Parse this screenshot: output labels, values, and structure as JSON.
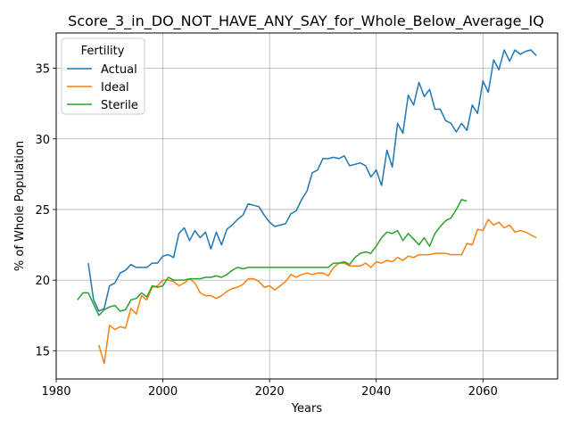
{
  "chart_data": {
    "type": "line",
    "title": "Score_3_in_DO_NOT_HAVE_ANY_SAY_for_Whole_Below_Average_IQ",
    "xlabel": "Years",
    "ylabel": "% of Whole Population",
    "xlim": [
      1980,
      2074
    ],
    "ylim": [
      13,
      37.5
    ],
    "xticks": [
      1980,
      2000,
      2020,
      2040,
      2060
    ],
    "yticks": [
      15,
      20,
      25,
      30,
      35
    ],
    "xtick_labels": [
      "1980",
      "2000",
      "2020",
      "2040",
      "2060"
    ],
    "ytick_labels": [
      "15",
      "20",
      "25",
      "30",
      "35"
    ],
    "grid": true,
    "legend": {
      "title": "Fertility",
      "position": "top-left"
    },
    "series": [
      {
        "name": "Actual",
        "color": "#1f77b4",
        "x": [
          1986,
          1987,
          1988,
          1989,
          1990,
          1991,
          1992,
          1993,
          1994,
          1995,
          1996,
          1997,
          1998,
          1999,
          2000,
          2001,
          2002,
          2003,
          2004,
          2005,
          2006,
          2007,
          2008,
          2009,
          2010,
          2011,
          2012,
          2013,
          2014,
          2015,
          2016,
          2017,
          2018,
          2019,
          2020,
          2021,
          2022,
          2023,
          2024,
          2025,
          2026,
          2027,
          2028,
          2029,
          2030,
          2031,
          2032,
          2033,
          2034,
          2035,
          2036,
          2037,
          2038,
          2039,
          2040,
          2041,
          2042,
          2043,
          2044,
          2045,
          2046,
          2047,
          2048,
          2049,
          2050,
          2051,
          2052,
          2053,
          2054,
          2055,
          2056,
          2057,
          2058,
          2059,
          2060,
          2061,
          2062,
          2063,
          2064,
          2065,
          2066,
          2067,
          2068,
          2069,
          2070
        ],
        "values": [
          21.2,
          18.6,
          17.8,
          18.0,
          19.6,
          19.8,
          20.5,
          20.7,
          21.1,
          20.9,
          20.9,
          20.9,
          21.2,
          21.2,
          21.7,
          21.8,
          21.6,
          23.3,
          23.7,
          22.8,
          23.5,
          23.0,
          23.4,
          22.2,
          23.4,
          22.5,
          23.6,
          23.9,
          24.3,
          24.6,
          25.4,
          25.3,
          25.2,
          24.6,
          24.1,
          23.8,
          23.9,
          24.0,
          24.7,
          24.9,
          25.7,
          26.3,
          27.6,
          27.8,
          28.6,
          28.6,
          28.7,
          28.6,
          28.8,
          28.1,
          28.2,
          28.3,
          28.1,
          27.3,
          27.8,
          26.7,
          29.2,
          28.0,
          31.1,
          30.4,
          33.1,
          32.4,
          34.0,
          33.0,
          33.5,
          32.1,
          32.1,
          31.3,
          31.1,
          30.5,
          31.1,
          30.6,
          32.4,
          31.8,
          34.1,
          33.3,
          35.6,
          34.9,
          36.3,
          35.5,
          36.3,
          36.0,
          36.2,
          36.3,
          35.9
        ]
      },
      {
        "name": "Ideal",
        "color": "#ff7f0e",
        "x": [
          1988,
          1989,
          1990,
          1991,
          1992,
          1993,
          1994,
          1995,
          1996,
          1997,
          1998,
          1999,
          2000,
          2001,
          2002,
          2003,
          2004,
          2005,
          2006,
          2007,
          2008,
          2009,
          2010,
          2011,
          2012,
          2013,
          2014,
          2015,
          2016,
          2017,
          2018,
          2019,
          2020,
          2021,
          2022,
          2023,
          2024,
          2025,
          2026,
          2027,
          2028,
          2029,
          2030,
          2031,
          2032,
          2033,
          2034,
          2035,
          2036,
          2037,
          2038,
          2039,
          2040,
          2041,
          2042,
          2043,
          2044,
          2045,
          2046,
          2047,
          2048,
          2049,
          2050,
          2051,
          2052,
          2053,
          2054,
          2055,
          2056,
          2057,
          2058,
          2059,
          2060,
          2061,
          2062,
          2063,
          2064,
          2065,
          2066,
          2067,
          2068,
          2069,
          2070
        ],
        "values": [
          15.4,
          14.1,
          16.8,
          16.5,
          16.7,
          16.6,
          18.0,
          17.6,
          18.9,
          18.6,
          19.5,
          19.6,
          20.0,
          20.0,
          19.9,
          19.6,
          19.8,
          20.1,
          19.8,
          19.1,
          18.9,
          18.9,
          18.7,
          18.9,
          19.2,
          19.4,
          19.5,
          19.7,
          20.1,
          20.1,
          19.9,
          19.5,
          19.6,
          19.3,
          19.6,
          19.9,
          20.4,
          20.2,
          20.4,
          20.5,
          20.4,
          20.5,
          20.5,
          20.3,
          20.9,
          21.2,
          21.2,
          21.0,
          21.0,
          21.0,
          21.2,
          20.9,
          21.3,
          21.2,
          21.4,
          21.3,
          21.6,
          21.4,
          21.7,
          21.6,
          21.8,
          21.8,
          21.8,
          21.9,
          21.9,
          21.9,
          21.8,
          21.8,
          21.8,
          22.6,
          22.5,
          23.6,
          23.5,
          24.3,
          23.9,
          24.1,
          23.7,
          23.9,
          23.4,
          23.5,
          23.4,
          23.2,
          23.0
        ]
      },
      {
        "name": "Sterile",
        "color": "#2ca02c",
        "x": [
          1984,
          1985,
          1986,
          1987,
          1988,
          1989,
          1990,
          1991,
          1992,
          1993,
          1994,
          1995,
          1996,
          1997,
          1998,
          1999,
          2000,
          2001,
          2002,
          2003,
          2004,
          2005,
          2006,
          2007,
          2008,
          2009,
          2010,
          2011,
          2012,
          2013,
          2014,
          2015,
          2016,
          2017,
          2018,
          2019,
          2020,
          2021,
          2022,
          2023,
          2024,
          2025,
          2026,
          2027,
          2028,
          2029,
          2030,
          2031,
          2032,
          2033,
          2034,
          2035,
          2036,
          2037,
          2038,
          2039,
          2040,
          2041,
          2042,
          2043,
          2044,
          2045,
          2046,
          2047,
          2048,
          2049,
          2050,
          2051,
          2052,
          2053,
          2054,
          2055,
          2056,
          2057
        ],
        "values": [
          18.6,
          19.1,
          19.1,
          18.3,
          17.5,
          17.9,
          18.1,
          18.2,
          17.8,
          17.9,
          18.6,
          18.7,
          19.1,
          18.8,
          19.6,
          19.5,
          19.6,
          20.2,
          20.0,
          20.0,
          20.0,
          20.1,
          20.1,
          20.1,
          20.2,
          20.2,
          20.3,
          20.2,
          20.4,
          20.7,
          20.9,
          20.8,
          20.9,
          20.9,
          20.9,
          20.9,
          20.9,
          20.9,
          20.9,
          20.9,
          20.9,
          20.9,
          20.9,
          20.9,
          20.9,
          20.9,
          20.9,
          20.9,
          21.2,
          21.2,
          21.3,
          21.1,
          21.6,
          21.9,
          22.0,
          21.9,
          22.4,
          23.0,
          23.4,
          23.3,
          23.5,
          22.8,
          23.3,
          22.9,
          22.5,
          23.0,
          22.4,
          23.3,
          23.8,
          24.2,
          24.4,
          25.0,
          25.7,
          25.6
        ]
      }
    ]
  }
}
